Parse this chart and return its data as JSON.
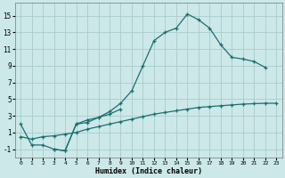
{
  "xlabel": "Humidex (Indice chaleur)",
  "bg_color": "#cce8e8",
  "grid_color": "#aacccc",
  "line_color": "#1a7070",
  "xlim_min": -0.5,
  "xlim_max": 23.5,
  "ylim_min": -2.0,
  "ylim_max": 16.5,
  "xticks": [
    0,
    1,
    2,
    3,
    4,
    5,
    6,
    7,
    8,
    9,
    10,
    11,
    12,
    13,
    14,
    15,
    16,
    17,
    18,
    19,
    20,
    21,
    22,
    23
  ],
  "yticks": [
    -1,
    1,
    3,
    5,
    7,
    9,
    11,
    13,
    15
  ],
  "curve1_x": [
    0,
    1,
    2,
    3,
    4,
    5,
    6,
    7,
    8,
    9,
    10,
    11,
    12,
    13,
    14,
    15,
    16,
    17,
    18,
    19,
    20,
    21,
    22
  ],
  "curve1_y": [
    2,
    -0.5,
    -0.5,
    -1.0,
    -1.2,
    2.0,
    2.2,
    2.8,
    3.5,
    4.5,
    6.0,
    9.0,
    12.0,
    13.0,
    13.5,
    15.2,
    14.5,
    13.5,
    11.5,
    10.0,
    9.8,
    9.5,
    8.8
  ],
  "curve2_x": [
    0,
    1,
    2,
    3,
    4,
    5,
    6,
    7,
    8,
    9,
    10,
    11,
    12,
    13,
    14,
    15,
    16,
    17,
    18,
    19,
    20,
    21,
    22,
    23
  ],
  "curve2_y": [
    0.5,
    0.2,
    0.5,
    0.6,
    0.8,
    1.0,
    1.4,
    1.7,
    2.0,
    2.3,
    2.6,
    2.9,
    3.2,
    3.4,
    3.6,
    3.8,
    4.0,
    4.1,
    4.2,
    4.3,
    4.4,
    4.45,
    4.5,
    4.5
  ],
  "curve3_x": [
    3,
    4,
    5,
    6,
    7,
    8,
    9
  ],
  "curve3_y": [
    -1.0,
    -1.2,
    2.0,
    2.5,
    2.8,
    3.2,
    3.8
  ],
  "xlabel_fontsize": 6,
  "tick_fontsize_x": 4.5,
  "tick_fontsize_y": 5.5
}
